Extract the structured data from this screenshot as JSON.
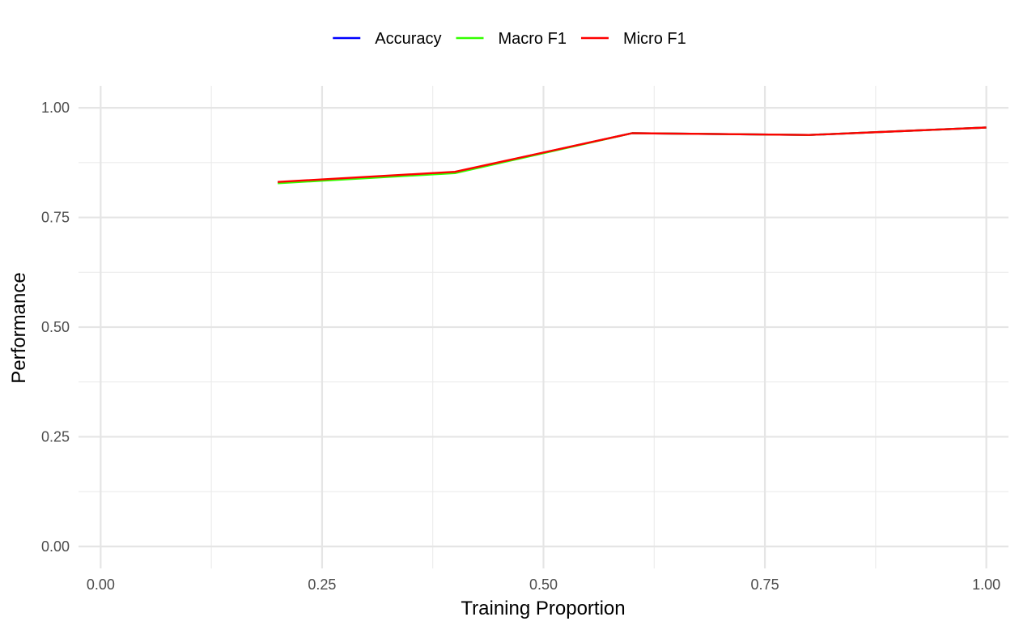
{
  "chart_data": {
    "type": "line",
    "title": "",
    "xlabel": "Training Proportion",
    "ylabel": "Performance",
    "xlim": [
      -0.025,
      1.025
    ],
    "ylim": [
      -0.05,
      1.05
    ],
    "x_ticks": [
      0.0,
      0.25,
      0.5,
      0.75,
      1.0
    ],
    "x_tick_labels": [
      "0.00",
      "0.25",
      "0.50",
      "0.75",
      "1.00"
    ],
    "y_ticks": [
      0.0,
      0.25,
      0.5,
      0.75,
      1.0
    ],
    "y_tick_labels": [
      "0.00",
      "0.25",
      "0.50",
      "0.75",
      "1.00"
    ],
    "grid": true,
    "legend_position": "top",
    "x": [
      0.2,
      0.4,
      0.6,
      0.8,
      1.0
    ],
    "series": [
      {
        "name": "Accuracy",
        "color": "#0000ff",
        "values": [
          0.83,
          0.853,
          0.942,
          0.938,
          0.955
        ]
      },
      {
        "name": "Macro F1",
        "color": "#33ff00",
        "values": [
          0.828,
          0.851,
          0.942,
          0.938,
          0.955
        ]
      },
      {
        "name": "Micro F1",
        "color": "#ff0000",
        "values": [
          0.831,
          0.854,
          0.942,
          0.938,
          0.955
        ]
      }
    ]
  }
}
